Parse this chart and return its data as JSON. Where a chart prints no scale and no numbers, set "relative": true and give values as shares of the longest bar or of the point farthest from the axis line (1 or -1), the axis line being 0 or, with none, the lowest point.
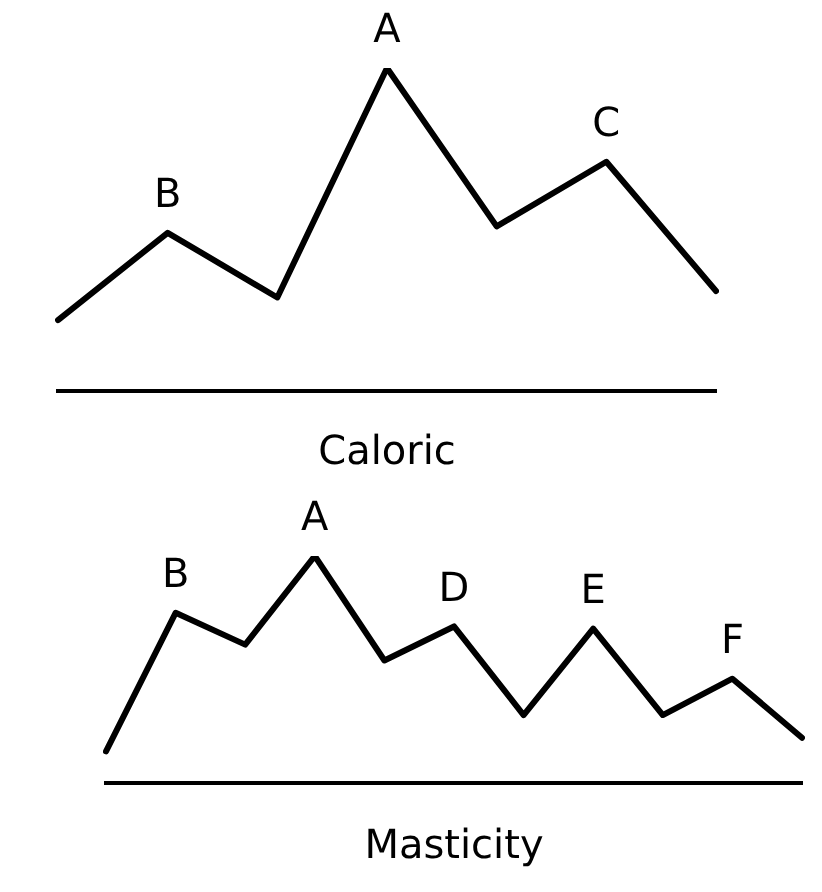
{
  "chart_data": [
    {
      "type": "line",
      "xlabel": "Caloric",
      "categories": [
        null,
        null,
        null,
        null,
        null,
        null,
        null
      ],
      "values": [
        0.22,
        0.49,
        0.29,
        1,
        0.51,
        0.71,
        0.31
      ],
      "color": "#000000",
      "relative": true,
      "marker": "none",
      "annotations": [
        {
          "text": "B",
          "y": 0.49
        },
        {
          "text": "A",
          "y": 1
        },
        {
          "text": "C",
          "y": 0.71
        }
      ]
    },
    {
      "type": "line",
      "xlabel": "Masticity",
      "categories": [
        null,
        null,
        null,
        null,
        null,
        null,
        null,
        null,
        null,
        null,
        null
      ],
      "values": [
        0.14,
        0.75,
        0.61,
        1,
        0.54,
        0.69,
        0.3,
        0.68,
        0.3,
        0.46,
        0.2
      ],
      "color": "#000000",
      "relative": true,
      "marker": "none",
      "annotations": [
        {
          "text": "B",
          "y": 0.75
        },
        {
          "text": "A",
          "y": 1
        },
        {
          "text": "D",
          "y": 0.69
        },
        {
          "text": "E",
          "y": 0.68
        },
        {
          "text": "F",
          "y": 0.46
        }
      ]
    }
  ]
}
